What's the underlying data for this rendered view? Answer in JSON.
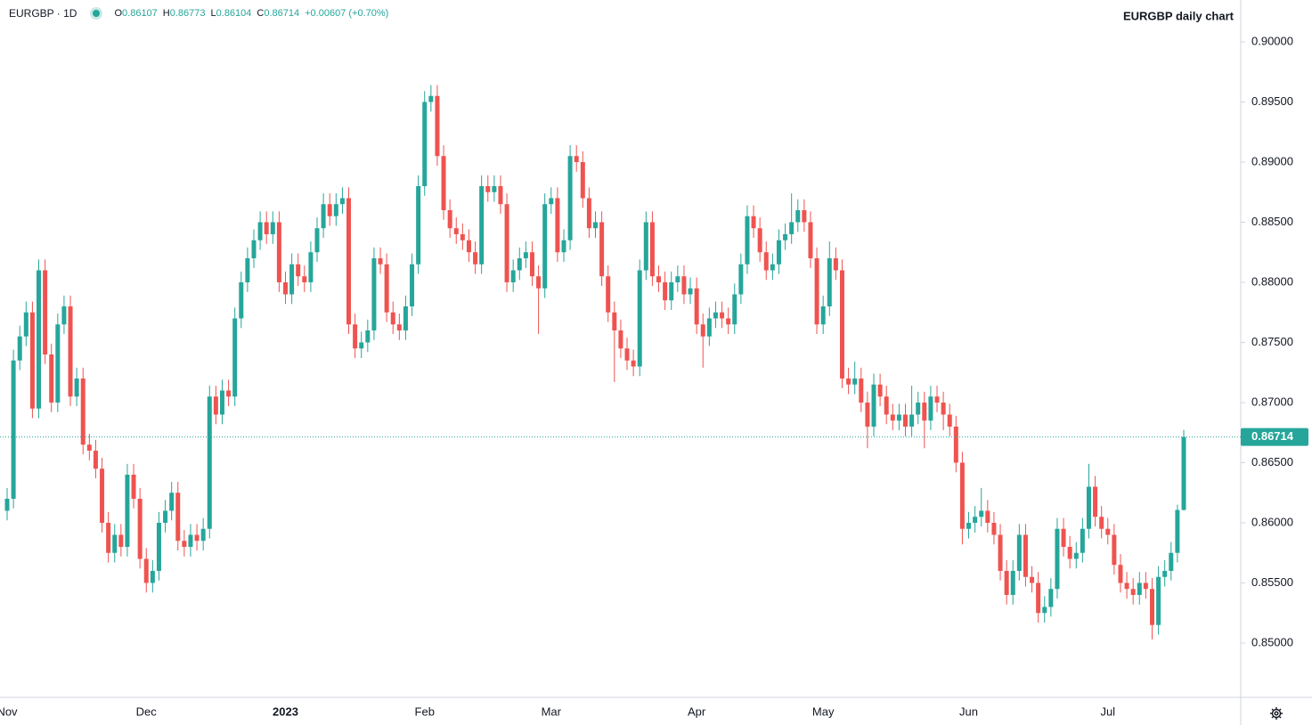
{
  "chart_data": {
    "type": "candlestick",
    "title": "EURGBP daily chart",
    "symbol": "EURGBP · 1D",
    "ohlc_labels": [
      "O",
      "H",
      "L",
      "C"
    ],
    "change_label": "+0.00607 (+0.70%)",
    "up_color": "#26a69a",
    "down_color": "#ef5350",
    "grid": false,
    "ylim": [
      0.84548,
      0.90348
    ],
    "yticks": [
      {
        "value": 0.85,
        "label": "0.85000"
      },
      {
        "value": 0.855,
        "label": "0.85500"
      },
      {
        "value": 0.86,
        "label": "0.86000"
      },
      {
        "value": 0.865,
        "label": "0.86500"
      },
      {
        "value": 0.87,
        "label": "0.87000"
      },
      {
        "value": 0.875,
        "label": "0.87500"
      },
      {
        "value": 0.88,
        "label": "0.88000"
      },
      {
        "value": 0.885,
        "label": "0.88500"
      },
      {
        "value": 0.89,
        "label": "0.89000"
      },
      {
        "value": 0.895,
        "label": "0.89500"
      },
      {
        "value": 0.9,
        "label": "0.90000"
      }
    ],
    "categories": [
      "Nov",
      null,
      null,
      null,
      null,
      null,
      null,
      null,
      null,
      null,
      null,
      null,
      null,
      null,
      null,
      null,
      null,
      null,
      null,
      null,
      null,
      null,
      "Dec",
      null,
      null,
      null,
      null,
      null,
      null,
      null,
      null,
      null,
      null,
      null,
      null,
      null,
      null,
      null,
      null,
      null,
      null,
      null,
      null,
      null,
      "2023",
      null,
      null,
      null,
      null,
      null,
      null,
      null,
      null,
      null,
      null,
      null,
      null,
      null,
      null,
      null,
      null,
      null,
      null,
      null,
      null,
      null,
      "Feb",
      null,
      null,
      null,
      null,
      null,
      null,
      null,
      null,
      null,
      null,
      null,
      null,
      null,
      null,
      null,
      null,
      null,
      null,
      null,
      "Mar",
      null,
      null,
      null,
      null,
      null,
      null,
      null,
      null,
      null,
      null,
      null,
      null,
      null,
      null,
      null,
      null,
      null,
      null,
      null,
      null,
      null,
      null,
      "Apr",
      null,
      null,
      null,
      null,
      null,
      null,
      null,
      null,
      null,
      null,
      null,
      null,
      null,
      null,
      null,
      null,
      null,
      null,
      null,
      "May",
      null,
      null,
      null,
      null,
      null,
      null,
      null,
      null,
      null,
      null,
      null,
      null,
      null,
      null,
      null,
      null,
      null,
      null,
      null,
      null,
      null,
      null,
      "Jun",
      null,
      null,
      null,
      null,
      null,
      null,
      null,
      null,
      null,
      null,
      null,
      null,
      null,
      null,
      null,
      null,
      null,
      null,
      null,
      null,
      null,
      "Jul",
      null,
      null,
      null,
      null,
      null,
      null,
      null,
      null,
      null,
      null,
      null,
      null
    ],
    "ohlc": [
      [
        0.861,
        0.8629,
        0.8602,
        0.862
      ],
      [
        0.862,
        0.8744,
        0.8612,
        0.8735
      ],
      [
        0.8735,
        0.8764,
        0.8727,
        0.8755
      ],
      [
        0.8755,
        0.8784,
        0.8747,
        0.8775
      ],
      [
        0.8775,
        0.8784,
        0.8687,
        0.8695
      ],
      [
        0.8695,
        0.8819,
        0.8687,
        0.881
      ],
      [
        0.881,
        0.8819,
        0.8732,
        0.874
      ],
      [
        0.874,
        0.8749,
        0.8692,
        0.87
      ],
      [
        0.87,
        0.8774,
        0.8692,
        0.8765
      ],
      [
        0.8765,
        0.8789,
        0.8757,
        0.878
      ],
      [
        0.878,
        0.8789,
        0.8697,
        0.8705
      ],
      [
        0.8705,
        0.8729,
        0.8697,
        0.872
      ],
      [
        0.872,
        0.8729,
        0.8657,
        0.8665
      ],
      [
        0.8665,
        0.8674,
        0.8652,
        0.866
      ],
      [
        0.866,
        0.8669,
        0.8637,
        0.8645
      ],
      [
        0.8645,
        0.8654,
        0.8592,
        0.86
      ],
      [
        0.86,
        0.8609,
        0.8567,
        0.8575
      ],
      [
        0.8575,
        0.8599,
        0.8567,
        0.859
      ],
      [
        0.859,
        0.8599,
        0.8572,
        0.858
      ],
      [
        0.858,
        0.8649,
        0.8572,
        0.864
      ],
      [
        0.864,
        0.8649,
        0.8612,
        0.862
      ],
      [
        0.862,
        0.8629,
        0.8562,
        0.857
      ],
      [
        0.857,
        0.8579,
        0.8542,
        0.855
      ],
      [
        0.855,
        0.8569,
        0.8542,
        0.856
      ],
      [
        0.856,
        0.8609,
        0.8552,
        0.86
      ],
      [
        0.86,
        0.8619,
        0.8592,
        0.861
      ],
      [
        0.861,
        0.8634,
        0.8602,
        0.8625
      ],
      [
        0.8625,
        0.8634,
        0.8577,
        0.8585
      ],
      [
        0.8585,
        0.8594,
        0.8572,
        0.858
      ],
      [
        0.858,
        0.8599,
        0.8572,
        0.859
      ],
      [
        0.859,
        0.8599,
        0.8577,
        0.8585
      ],
      [
        0.8585,
        0.8604,
        0.8577,
        0.8595
      ],
      [
        0.8595,
        0.8714,
        0.8587,
        0.8705
      ],
      [
        0.8705,
        0.8714,
        0.8682,
        0.869
      ],
      [
        0.869,
        0.8719,
        0.8682,
        0.871
      ],
      [
        0.871,
        0.8719,
        0.8697,
        0.8705
      ],
      [
        0.8705,
        0.8779,
        0.8697,
        0.877
      ],
      [
        0.877,
        0.8809,
        0.8762,
        0.88
      ],
      [
        0.88,
        0.8829,
        0.8792,
        0.882
      ],
      [
        0.882,
        0.8844,
        0.8812,
        0.8835
      ],
      [
        0.8835,
        0.8859,
        0.8827,
        0.885
      ],
      [
        0.885,
        0.8859,
        0.8832,
        0.884
      ],
      [
        0.884,
        0.8859,
        0.8832,
        0.885
      ],
      [
        0.885,
        0.8859,
        0.8792,
        0.88
      ],
      [
        0.88,
        0.8809,
        0.8782,
        0.879
      ],
      [
        0.879,
        0.8824,
        0.8782,
        0.8815
      ],
      [
        0.8815,
        0.8824,
        0.8797,
        0.8805
      ],
      [
        0.8805,
        0.8814,
        0.8792,
        0.88
      ],
      [
        0.88,
        0.8834,
        0.8792,
        0.8825
      ],
      [
        0.8825,
        0.8854,
        0.8817,
        0.8845
      ],
      [
        0.8845,
        0.8874,
        0.8837,
        0.8865
      ],
      [
        0.8865,
        0.8874,
        0.8847,
        0.8855
      ],
      [
        0.8855,
        0.8874,
        0.8847,
        0.8865
      ],
      [
        0.8865,
        0.8879,
        0.8857,
        0.887
      ],
      [
        0.887,
        0.8879,
        0.8757,
        0.8765
      ],
      [
        0.8765,
        0.8774,
        0.8737,
        0.8745
      ],
      [
        0.8745,
        0.8759,
        0.8737,
        0.875
      ],
      [
        0.875,
        0.8769,
        0.8742,
        0.876
      ],
      [
        0.876,
        0.8829,
        0.8752,
        0.882
      ],
      [
        0.882,
        0.8829,
        0.8807,
        0.8815
      ],
      [
        0.8815,
        0.8824,
        0.8767,
        0.8775
      ],
      [
        0.8775,
        0.8784,
        0.8757,
        0.8765
      ],
      [
        0.8765,
        0.8774,
        0.8752,
        0.876
      ],
      [
        0.876,
        0.8789,
        0.8752,
        0.878
      ],
      [
        0.878,
        0.8824,
        0.8772,
        0.8815
      ],
      [
        0.8815,
        0.8889,
        0.8807,
        0.888
      ],
      [
        0.888,
        0.8959,
        0.8872,
        0.895
      ],
      [
        0.895,
        0.8964,
        0.8942,
        0.8955
      ],
      [
        0.8955,
        0.8964,
        0.8897,
        0.8905
      ],
      [
        0.8905,
        0.8914,
        0.8852,
        0.886
      ],
      [
        0.886,
        0.8869,
        0.8837,
        0.8845
      ],
      [
        0.8845,
        0.8854,
        0.8832,
        0.884
      ],
      [
        0.884,
        0.8849,
        0.8827,
        0.8835
      ],
      [
        0.8835,
        0.8844,
        0.8817,
        0.8825
      ],
      [
        0.8825,
        0.8834,
        0.8807,
        0.8815
      ],
      [
        0.8815,
        0.8889,
        0.8807,
        0.888
      ],
      [
        0.888,
        0.8889,
        0.8867,
        0.8875
      ],
      [
        0.8875,
        0.8889,
        0.8867,
        0.888
      ],
      [
        0.888,
        0.8889,
        0.8857,
        0.8865
      ],
      [
        0.8865,
        0.8874,
        0.8792,
        0.88
      ],
      [
        0.88,
        0.8819,
        0.8792,
        0.881
      ],
      [
        0.881,
        0.8829,
        0.8802,
        0.882
      ],
      [
        0.882,
        0.8834,
        0.8812,
        0.8825
      ],
      [
        0.8825,
        0.8834,
        0.8797,
        0.8805
      ],
      [
        0.8805,
        0.8814,
        0.8757,
        0.8795
      ],
      [
        0.8795,
        0.8874,
        0.8787,
        0.8865
      ],
      [
        0.8865,
        0.8879,
        0.8857,
        0.887
      ],
      [
        0.887,
        0.8879,
        0.8817,
        0.8825
      ],
      [
        0.8825,
        0.8844,
        0.8817,
        0.8835
      ],
      [
        0.8835,
        0.8914,
        0.8827,
        0.8905
      ],
      [
        0.8905,
        0.8914,
        0.8892,
        0.89
      ],
      [
        0.89,
        0.8909,
        0.8862,
        0.887
      ],
      [
        0.887,
        0.8879,
        0.8837,
        0.8845
      ],
      [
        0.8845,
        0.8859,
        0.8837,
        0.885
      ],
      [
        0.885,
        0.8859,
        0.8797,
        0.8805
      ],
      [
        0.8805,
        0.8814,
        0.8767,
        0.8775
      ],
      [
        0.8775,
        0.8784,
        0.8717,
        0.876
      ],
      [
        0.876,
        0.8769,
        0.8737,
        0.8745
      ],
      [
        0.8745,
        0.8754,
        0.8727,
        0.8735
      ],
      [
        0.8735,
        0.8744,
        0.8722,
        0.873
      ],
      [
        0.873,
        0.8819,
        0.8722,
        0.881
      ],
      [
        0.881,
        0.8859,
        0.8802,
        0.885
      ],
      [
        0.885,
        0.8859,
        0.8797,
        0.8805
      ],
      [
        0.8805,
        0.8814,
        0.8792,
        0.88
      ],
      [
        0.88,
        0.8809,
        0.8777,
        0.8785
      ],
      [
        0.8785,
        0.8809,
        0.8777,
        0.88
      ],
      [
        0.88,
        0.8814,
        0.8792,
        0.8805
      ],
      [
        0.8805,
        0.8814,
        0.8782,
        0.879
      ],
      [
        0.879,
        0.8804,
        0.8782,
        0.8795
      ],
      [
        0.8795,
        0.8804,
        0.8757,
        0.8765
      ],
      [
        0.8765,
        0.8774,
        0.8729,
        0.8755
      ],
      [
        0.8755,
        0.8779,
        0.8747,
        0.877
      ],
      [
        0.877,
        0.8784,
        0.8762,
        0.8775
      ],
      [
        0.8775,
        0.8784,
        0.8762,
        0.877
      ],
      [
        0.877,
        0.8779,
        0.8757,
        0.8765
      ],
      [
        0.8765,
        0.8799,
        0.8757,
        0.879
      ],
      [
        0.879,
        0.8824,
        0.8782,
        0.8815
      ],
      [
        0.8815,
        0.8864,
        0.8807,
        0.8855
      ],
      [
        0.8855,
        0.8864,
        0.8837,
        0.8845
      ],
      [
        0.8845,
        0.8854,
        0.8817,
        0.8825
      ],
      [
        0.8825,
        0.8834,
        0.8802,
        0.881
      ],
      [
        0.881,
        0.8824,
        0.8802,
        0.8815
      ],
      [
        0.8815,
        0.8844,
        0.8807,
        0.8835
      ],
      [
        0.8835,
        0.8849,
        0.8827,
        0.884
      ],
      [
        0.884,
        0.8874,
        0.8832,
        0.885
      ],
      [
        0.885,
        0.8869,
        0.8842,
        0.886
      ],
      [
        0.886,
        0.8869,
        0.8842,
        0.885
      ],
      [
        0.885,
        0.8859,
        0.8812,
        0.882
      ],
      [
        0.882,
        0.8829,
        0.8757,
        0.8765
      ],
      [
        0.8765,
        0.8789,
        0.8757,
        0.878
      ],
      [
        0.878,
        0.8834,
        0.8772,
        0.882
      ],
      [
        0.882,
        0.8829,
        0.8802,
        0.881
      ],
      [
        0.881,
        0.8819,
        0.8712,
        0.872
      ],
      [
        0.872,
        0.8729,
        0.8707,
        0.8715
      ],
      [
        0.8715,
        0.8734,
        0.8707,
        0.872
      ],
      [
        0.872,
        0.8729,
        0.8692,
        0.87
      ],
      [
        0.87,
        0.8709,
        0.8662,
        0.868
      ],
      [
        0.868,
        0.8724,
        0.8672,
        0.8715
      ],
      [
        0.8715,
        0.8724,
        0.8697,
        0.8705
      ],
      [
        0.8705,
        0.8714,
        0.8682,
        0.869
      ],
      [
        0.869,
        0.8699,
        0.8677,
        0.8685
      ],
      [
        0.8685,
        0.8699,
        0.8677,
        0.869
      ],
      [
        0.869,
        0.8699,
        0.8672,
        0.868
      ],
      [
        0.868,
        0.8714,
        0.8672,
        0.869
      ],
      [
        0.869,
        0.8709,
        0.8682,
        0.87
      ],
      [
        0.87,
        0.8709,
        0.8662,
        0.8685
      ],
      [
        0.8685,
        0.8714,
        0.8677,
        0.8705
      ],
      [
        0.8705,
        0.8714,
        0.8692,
        0.87
      ],
      [
        0.87,
        0.8709,
        0.8677,
        0.869
      ],
      [
        0.869,
        0.8699,
        0.8672,
        0.868
      ],
      [
        0.868,
        0.8689,
        0.8642,
        0.865
      ],
      [
        0.865,
        0.8659,
        0.8582,
        0.8595
      ],
      [
        0.8595,
        0.8609,
        0.8587,
        0.86
      ],
      [
        0.86,
        0.8614,
        0.8592,
        0.8605
      ],
      [
        0.8605,
        0.8629,
        0.8597,
        0.861
      ],
      [
        0.861,
        0.8619,
        0.8592,
        0.86
      ],
      [
        0.86,
        0.8609,
        0.8582,
        0.859
      ],
      [
        0.859,
        0.8599,
        0.8552,
        0.856
      ],
      [
        0.856,
        0.8569,
        0.8532,
        0.854
      ],
      [
        0.854,
        0.8569,
        0.8532,
        0.856
      ],
      [
        0.856,
        0.8599,
        0.8552,
        0.859
      ],
      [
        0.859,
        0.8599,
        0.8547,
        0.8555
      ],
      [
        0.8555,
        0.8564,
        0.8542,
        0.855
      ],
      [
        0.855,
        0.8559,
        0.8517,
        0.8525
      ],
      [
        0.8525,
        0.8539,
        0.8517,
        0.853
      ],
      [
        0.853,
        0.8554,
        0.8522,
        0.8545
      ],
      [
        0.8545,
        0.8604,
        0.8537,
        0.8595
      ],
      [
        0.8595,
        0.8604,
        0.8572,
        0.858
      ],
      [
        0.858,
        0.8589,
        0.8562,
        0.857
      ],
      [
        0.857,
        0.8584,
        0.8562,
        0.8575
      ],
      [
        0.8575,
        0.8604,
        0.8567,
        0.8595
      ],
      [
        0.8595,
        0.8649,
        0.8587,
        0.863
      ],
      [
        0.863,
        0.8639,
        0.8597,
        0.8605
      ],
      [
        0.8605,
        0.8614,
        0.8587,
        0.8595
      ],
      [
        0.8595,
        0.8604,
        0.8582,
        0.859
      ],
      [
        0.859,
        0.8599,
        0.8557,
        0.8565
      ],
      [
        0.8565,
        0.8574,
        0.8542,
        0.855
      ],
      [
        0.855,
        0.8559,
        0.8537,
        0.8545
      ],
      [
        0.8545,
        0.8554,
        0.8532,
        0.854
      ],
      [
        0.854,
        0.8559,
        0.8532,
        0.855
      ],
      [
        0.855,
        0.8559,
        0.8537,
        0.8545
      ],
      [
        0.8545,
        0.8554,
        0.8503,
        0.8515
      ],
      [
        0.8515,
        0.8564,
        0.8507,
        0.8555
      ],
      [
        0.8555,
        0.8569,
        0.8547,
        0.856
      ],
      [
        0.856,
        0.8584,
        0.8552,
        0.8575
      ],
      [
        0.8575,
        0.8615,
        0.8567,
        0.86107
      ],
      [
        0.86107,
        0.86773,
        0.86104,
        0.86714
      ]
    ]
  }
}
